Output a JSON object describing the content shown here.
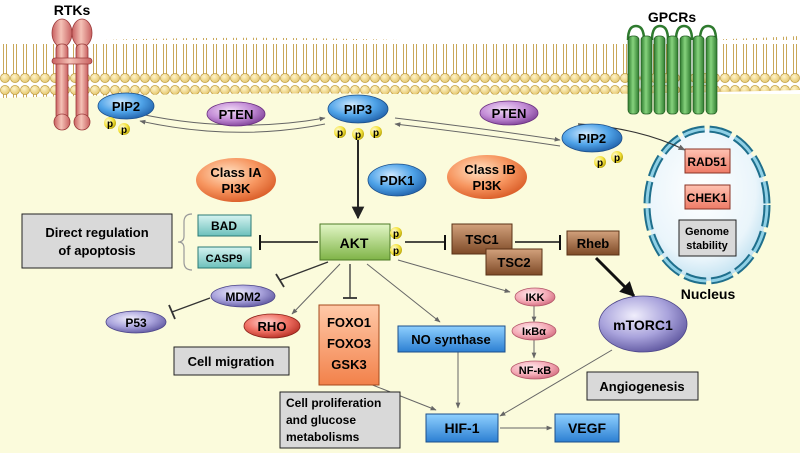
{
  "membrane_labels": {
    "rtks": "RTKs",
    "gpcrs": "GPCRs"
  },
  "lipids": {
    "pip2_left": "PIP2",
    "pip3": "PIP3",
    "pip2_right": "PIP2",
    "phosphate": "p"
  },
  "enzymes": {
    "pten_left": "PTEN",
    "pten_right": "PTEN",
    "pdk1": "PDK1",
    "class_ia_line1": "Class IA",
    "class_ia_line2": "PI3K",
    "class_ib_line1": "Class IB",
    "class_ib_line2": "PI3K"
  },
  "core": {
    "akt": "AKT",
    "tsc1": "TSC1",
    "tsc2": "TSC2",
    "rheb": "Rheb",
    "mtorc1": "mTORC1"
  },
  "apoptosis": {
    "bad": "BAD",
    "casp9": "CASP9",
    "label_line1": "Direct regulation",
    "label_line2": "of apoptosis"
  },
  "downstream": {
    "mdm2": "MDM2",
    "p53": "P53",
    "rho": "RHO",
    "foxo1": "FOXO1",
    "foxo3": "FOXO3",
    "gsk3": "GSK3",
    "no_synthase": "NO synthase",
    "ikk": "IKK",
    "ikba": "IκBα",
    "nfkb": "NF-κB",
    "hif1": "HIF-1",
    "vegf": "VEGF"
  },
  "process_labels": {
    "cell_migration": "Cell migration",
    "proliferation_line1": "Cell proliferation",
    "proliferation_line2": "and glucose",
    "proliferation_line3": "metabolisms",
    "angiogenesis": "Angiogenesis"
  },
  "nucleus": {
    "rad51": "RAD51",
    "chek1": "CHEK1",
    "genome_line1": "Genome",
    "genome_line2": "stability",
    "label": "Nucleus"
  }
}
